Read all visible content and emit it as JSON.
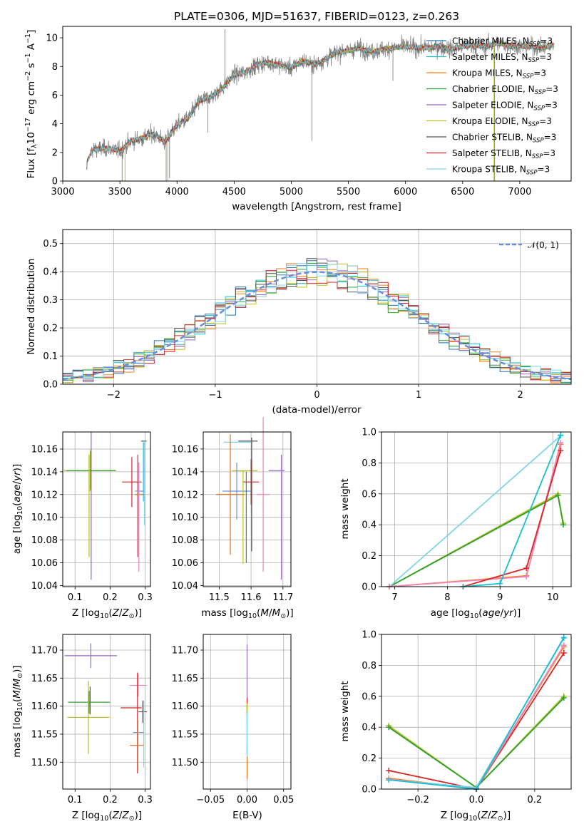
{
  "title": "PLATE=0306, MJD=51637, FIBERID=0123, z=0.263",
  "colors": {
    "Chabrier MILES": "#1f77b4",
    "Salpeter MILES": "#17becf",
    "Kroupa MILES": "#ff7f0e",
    "Chabrier ELODIE": "#2ca02c",
    "Salpeter ELODIE": "#9467bd",
    "Kroupa ELODIE": "#bcbd22",
    "Chabrier STELIB": "#555555",
    "Salpeter STELIB": "#d62728",
    "Kroupa STELIB": "#80d4e8",
    "data": "#808080",
    "normal": "#6b8fdf",
    "Chabrier MILES bar": "#6f8fdf",
    "Kroupa MILES bar": "#e07020",
    "Salpeter MILES bar": "#ee82c0"
  },
  "legend": [
    {
      "model": "Chabrier MILES",
      "pre": "Chabrier MILES, N",
      "sub": "SSP",
      "post": "=3"
    },
    {
      "model": "Salpeter MILES",
      "pre": "Salpeter MILES, N",
      "sub": "SSP",
      "post": "=3"
    },
    {
      "model": "Kroupa MILES",
      "pre": "Kroupa MILES, N",
      "sub": "SSP",
      "post": "=3"
    },
    {
      "model": "Chabrier ELODIE",
      "pre": "Chabrier ELODIE, N",
      "sub": "SSP",
      "post": "=3"
    },
    {
      "model": "Salpeter ELODIE",
      "pre": "Salpeter ELODIE, N",
      "sub": "SSP",
      "post": "=3"
    },
    {
      "model": "Kroupa ELODIE",
      "pre": "Kroupa ELODIE, N",
      "sub": "SSP",
      "post": "=3"
    },
    {
      "model": "Chabrier STELIB",
      "pre": "Chabrier STELIB, N",
      "sub": "SSP",
      "post": "=3"
    },
    {
      "model": "Salpeter STELIB",
      "pre": "Salpeter STELIB, N",
      "sub": "SSP",
      "post": "=3"
    },
    {
      "model": "Kroupa STELIB",
      "pre": "Kroupa STELIB, N",
      "sub": "SSP",
      "post": "=3"
    }
  ],
  "legend2": "𝒩(0, 1)",
  "chart_data": [
    {
      "id": "spectrum",
      "type": "line",
      "xlabel": "wavelength [Angstrom, rest frame]",
      "ylabel": "Flux [fλ10⁻¹⁷ erg cm⁻² s⁻¹ A⁻¹]",
      "xlim": [
        3000,
        7450
      ],
      "ylim": [
        0,
        10.8
      ],
      "xticks": [
        3000,
        3500,
        4000,
        4500,
        5000,
        5500,
        6000,
        6500,
        7000
      ],
      "yticks": [
        0,
        2,
        4,
        6,
        8,
        10
      ],
      "continuum": [
        [
          3200,
          0
        ],
        [
          3215,
          1.4
        ],
        [
          3260,
          2.2
        ],
        [
          3400,
          2.3
        ],
        [
          3500,
          2.1
        ],
        [
          3600,
          2.8
        ],
        [
          3700,
          3.0
        ],
        [
          3800,
          3.3
        ],
        [
          3900,
          2.7
        ],
        [
          3950,
          3.4
        ],
        [
          4000,
          3.9
        ],
        [
          4100,
          4.4
        ],
        [
          4200,
          5.6
        ],
        [
          4300,
          5.9
        ],
        [
          4400,
          6.5
        ],
        [
          4500,
          7.4
        ],
        [
          4600,
          7.6
        ],
        [
          4700,
          8.1
        ],
        [
          4800,
          8.3
        ],
        [
          4900,
          8.1
        ],
        [
          5000,
          7.9
        ],
        [
          5100,
          8.4
        ],
        [
          5200,
          8.1
        ],
        [
          5300,
          8.5
        ],
        [
          5400,
          9.0
        ],
        [
          5500,
          9.1
        ],
        [
          5600,
          9.3
        ],
        [
          5700,
          9.0
        ],
        [
          5800,
          9.2
        ],
        [
          5900,
          9.3
        ],
        [
          6000,
          9.4
        ],
        [
          6100,
          9.3
        ],
        [
          6200,
          9.3
        ],
        [
          6300,
          9.4
        ],
        [
          6400,
          9.2
        ],
        [
          6500,
          9.4
        ],
        [
          6600,
          9.5
        ],
        [
          6700,
          9.4
        ],
        [
          6800,
          9.6
        ],
        [
          6900,
          9.5
        ],
        [
          7000,
          9.4
        ],
        [
          7100,
          9.4
        ],
        [
          7200,
          9.3
        ],
        [
          7300,
          9.5
        ]
      ],
      "model_range": [
        3210,
        7300
      ],
      "data_range": [
        3240,
        7300
      ]
    },
    {
      "id": "residuals",
      "type": "step-histogram",
      "xlabel": "(data-model)/error",
      "ylabel": "Normed distribution",
      "xlim": [
        -2.5,
        2.5
      ],
      "ylim": [
        0,
        0.55
      ],
      "xticks": [
        -2,
        -1,
        0,
        1,
        2
      ],
      "yticks": [
        0.0,
        0.1,
        0.2,
        0.3,
        0.4,
        0.5
      ],
      "bin_width": 0.1,
      "normal": {
        "mu": 0,
        "sigma": 1
      }
    },
    {
      "id": "age-vs-Z",
      "type": "errorbar",
      "xlabel_pre": "Z [log",
      "xlabel_sub": "10",
      "xlabel_post": "(Z/Z",
      "xlabel_sun": "⊙",
      "xlabel_end": ")]",
      "ylabel": "age  [log10(age/yr)]",
      "xlim": [
        0.065,
        0.315
      ],
      "ylim": [
        10.039,
        10.175
      ],
      "xticks": [
        0.1,
        0.2,
        0.3
      ],
      "yticks": [
        10.04,
        10.06,
        10.08,
        10.1,
        10.12,
        10.14,
        10.16
      ],
      "points": [
        {
          "model": "Kroupa ELODIE",
          "x": 0.143,
          "xerr": 0.075,
          "y": 10.141,
          "yerr": 0.018
        },
        {
          "model": "Chabrier ELODIE",
          "x": 0.145,
          "xerr": 0.07,
          "y": 10.141,
          "yerr": 0.017
        },
        {
          "model": "Salpeter ELODIE",
          "x": 0.146,
          "xerr": 0.0,
          "y": 10.11,
          "yerr": 0.065
        },
        {
          "model": "Kroupa ELODIE",
          "x": 0.14,
          "xerr": 0.0,
          "y": 10.11,
          "yerr": 0.045
        },
        {
          "model": "Salpeter STELIB",
          "x": 0.262,
          "xerr": 0.028,
          "y": 10.131,
          "yerr": 0.022
        },
        {
          "model": "Salpeter STELIB",
          "x": 0.279,
          "xerr": 0.0,
          "y": 10.11,
          "yerr": 0.045
        },
        {
          "model": "Chabrier MILES bar",
          "x": 0.283,
          "xerr": 0.012,
          "y": 10.123,
          "yerr": 0.0
        },
        {
          "model": "Kroupa MILES bar",
          "x": 0.283,
          "xerr": 0.013,
          "y": 10.12,
          "yerr": 0.0
        },
        {
          "model": "Salpeter MILES bar",
          "x": 0.282,
          "xerr": 0.0,
          "y": 10.1,
          "yerr": 0.048
        },
        {
          "model": "Chabrier STELIB",
          "x": 0.296,
          "xerr": 0.008,
          "y": 10.167,
          "yerr": 0.0
        },
        {
          "model": "Kroupa STELIB",
          "x": 0.298,
          "xerr": 0.0,
          "y": 10.13,
          "yerr": 0.037
        },
        {
          "model": "Salpeter MILES",
          "x": 0.295,
          "xerr": 0.0,
          "y": 10.14,
          "yerr": 0.026
        }
      ]
    },
    {
      "id": "age-vs-mass",
      "type": "errorbar",
      "xlabel": "mass [log10(M/M⊙)]",
      "xlim": [
        11.45,
        11.725
      ],
      "ylim": [
        10.039,
        10.175
      ],
      "xticks": [
        11.5,
        11.6,
        11.7
      ],
      "yticks": [
        10.04,
        10.06,
        10.08,
        10.1,
        10.12,
        10.14,
        10.16
      ],
      "points": [
        {
          "model": "Kroupa STELIB",
          "x": 11.56,
          "xerr": 0.045,
          "y": 10.166,
          "yerr": 0.0
        },
        {
          "model": "Chabrier STELIB",
          "x": 11.59,
          "xerr": 0.03,
          "y": 10.167,
          "yerr": 0.0
        },
        {
          "model": "Salpeter ELODIE",
          "x": 11.68,
          "xerr": 0.025,
          "y": 10.141,
          "yerr": 0.0
        },
        {
          "model": "Kroupa ELODIE",
          "x": 11.58,
          "xerr": 0.04,
          "y": 10.141,
          "yerr": 0.0
        },
        {
          "model": "Salpeter STELIB",
          "x": 11.6,
          "xerr": 0.025,
          "y": 10.131,
          "yerr": 0.02
        },
        {
          "model": "Chabrier MILES bar",
          "x": 11.555,
          "xerr": 0.045,
          "y": 10.123,
          "yerr": 0.025
        },
        {
          "model": "Kroupa MILES bar",
          "x": 11.535,
          "xerr": 0.045,
          "y": 10.12,
          "yerr": 0.053
        },
        {
          "model": "Salpeter MILES bar",
          "x": 11.638,
          "xerr": 0.02,
          "y": 10.12,
          "yerr": 0.068
        },
        {
          "model": "Salpeter ELODIE",
          "x": 11.695,
          "xerr": 0.0,
          "y": 10.1,
          "yerr": 0.055
        },
        {
          "model": "Chabrier ELODIE",
          "x": 11.585,
          "xerr": 0.0,
          "y": 10.1,
          "yerr": 0.04
        },
        {
          "model": "Kroupa ELODIE",
          "x": 11.575,
          "xerr": 0.0,
          "y": 10.1,
          "yerr": 0.041
        },
        {
          "model": "Chabrier STELIB",
          "x": 11.602,
          "xerr": 0.0,
          "y": 10.12,
          "yerr": 0.05
        }
      ]
    },
    {
      "id": "weight-vs-age",
      "type": "line",
      "xlabel": "age  [log10(age/yr)]",
      "ylabel": "mass weight",
      "xlim": [
        6.75,
        10.35
      ],
      "ylim": [
        0,
        1.0
      ],
      "xticks": [
        7,
        8,
        9,
        10
      ],
      "yticks": [
        0.0,
        0.2,
        0.4,
        0.6,
        0.8,
        1.0
      ],
      "series": [
        {
          "model": "Kroupa ELODIE",
          "x": [
            6.9,
            10.1,
            10.2
          ],
          "y": [
            0.0,
            0.6,
            0.41
          ]
        },
        {
          "model": "Chabrier ELODIE",
          "x": [
            6.9,
            10.1,
            10.2
          ],
          "y": [
            0.0,
            0.59,
            0.4
          ]
        },
        {
          "model": "Kroupa STELIB",
          "x": [
            6.9,
            10.15
          ],
          "y": [
            0.0,
            0.975
          ]
        },
        {
          "model": "Kroupa MILES",
          "x": [
            6.9,
            9.5,
            10.15
          ],
          "y": [
            0.0,
            0.07,
            0.92
          ]
        },
        {
          "model": "Salpeter MILES bar",
          "x": [
            6.9,
            9.5,
            10.15
          ],
          "y": [
            0.0,
            0.065,
            0.93
          ]
        },
        {
          "model": "Salpeter STELIB",
          "x": [
            8.3,
            9.5,
            10.15
          ],
          "y": [
            0.0,
            0.12,
            0.88
          ]
        },
        {
          "model": "Salpeter MILES",
          "x": [
            8.3,
            9.0,
            10.15
          ],
          "y": [
            0.0,
            0.02,
            0.98
          ]
        }
      ]
    },
    {
      "id": "mass-vs-Z",
      "type": "errorbar",
      "ylabel": "mass [log10(M/M⊙)]",
      "xlim": [
        0.065,
        0.315
      ],
      "ylim": [
        11.452,
        11.728
      ],
      "xticks": [
        0.1,
        0.2,
        0.3
      ],
      "yticks": [
        11.5,
        11.55,
        11.6,
        11.65,
        11.7
      ],
      "points": [
        {
          "model": "Salpeter ELODIE",
          "x": 0.145,
          "xerr": 0.075,
          "y": 11.69,
          "yerr": 0.022
        },
        {
          "model": "Chabrier STELIB",
          "x": 0.143,
          "xerr": 0.0,
          "y": 11.61,
          "yerr": 0.025
        },
        {
          "model": "Chabrier ELODIE",
          "x": 0.14,
          "xerr": 0.06,
          "y": 11.607,
          "yerr": 0.02
        },
        {
          "model": "Kroupa ELODIE",
          "x": 0.138,
          "xerr": 0.06,
          "y": 11.58,
          "yerr": 0.065
        },
        {
          "model": "Salpeter MILES bar",
          "x": 0.28,
          "xerr": 0.025,
          "y": 11.637,
          "yerr": 0.02
        },
        {
          "model": "Salpeter STELIB",
          "x": 0.26,
          "xerr": 0.03,
          "y": 11.597,
          "yerr": 0.0
        },
        {
          "model": "Salpeter STELIB",
          "x": 0.278,
          "xerr": 0.0,
          "y": 11.57,
          "yerr": 0.09
        },
        {
          "model": "Chabrier STELIB",
          "x": 0.293,
          "xerr": 0.012,
          "y": 11.59,
          "yerr": 0.02
        },
        {
          "model": "Chabrier MILES bar",
          "x": 0.28,
          "xerr": 0.015,
          "y": 11.553,
          "yerr": 0.0
        },
        {
          "model": "Kroupa MILES bar",
          "x": 0.276,
          "xerr": 0.02,
          "y": 11.53,
          "yerr": 0.0
        },
        {
          "model": "Kroupa STELIB",
          "x": 0.296,
          "xerr": 0.0,
          "y": 11.55,
          "yerr": 0.06
        },
        {
          "model": "Kroupa MILES bar",
          "x": 0.279,
          "xerr": 0.0,
          "y": 11.53,
          "yerr": 0.045
        }
      ]
    },
    {
      "id": "mass-vs-EBV",
      "type": "errorbar",
      "xlabel": "E(B-V)",
      "xlim": [
        -0.06,
        0.06
      ],
      "ylim": [
        11.452,
        11.728
      ],
      "xticks": [
        -0.05,
        0.0,
        0.05
      ],
      "yticks": [
        11.5,
        11.55,
        11.6,
        11.65,
        11.7
      ],
      "points": [
        {
          "model": "Salpeter ELODIE",
          "x": 0.0,
          "xerr": 0.0,
          "y": 11.64,
          "yerr": 0.07
        },
        {
          "model": "Salpeter STELIB",
          "x": 0.0,
          "xerr": 0.0,
          "y": 11.6,
          "yerr": 0.015
        },
        {
          "model": "Kroupa ELODIE",
          "x": 0.0,
          "xerr": 0.0,
          "y": 11.56,
          "yerr": 0.045
        },
        {
          "model": "Kroupa MILES bar",
          "x": 0.0,
          "xerr": 0.0,
          "y": 11.5,
          "yerr": 0.03
        },
        {
          "model": "Kroupa STELIB",
          "x": 0.0,
          "xerr": 0.0,
          "y": 11.55,
          "yerr": 0.04
        }
      ]
    },
    {
      "id": "weight-vs-Z",
      "type": "line",
      "xlabel": "Z [log10(Z/Z⊙)]",
      "ylabel": "mass weight",
      "xlim": [
        -0.325,
        0.325
      ],
      "ylim": [
        0,
        1.0
      ],
      "xticks": [
        -0.2,
        0.0,
        0.2
      ],
      "yticks": [
        0.0,
        0.2,
        0.4,
        0.6,
        0.8,
        1.0
      ],
      "series": [
        {
          "model": "Kroupa ELODIE",
          "x": [
            -0.3,
            0.0,
            0.3
          ],
          "y": [
            0.41,
            0.01,
            0.6
          ]
        },
        {
          "model": "Chabrier ELODIE",
          "x": [
            -0.3,
            0.0,
            0.3
          ],
          "y": [
            0.4,
            0.01,
            0.59
          ]
        },
        {
          "model": "Salpeter STELIB",
          "x": [
            -0.3,
            0.0,
            0.3
          ],
          "y": [
            0.12,
            0.0,
            0.88
          ]
        },
        {
          "model": "Kroupa MILES",
          "x": [
            -0.3,
            0.0,
            0.3
          ],
          "y": [
            0.07,
            0.0,
            0.92
          ]
        },
        {
          "model": "Salpeter MILES bar",
          "x": [
            -0.3,
            0.0,
            0.3
          ],
          "y": [
            0.065,
            0.0,
            0.93
          ]
        },
        {
          "model": "Kroupa STELIB",
          "x": [
            -0.3,
            0.0,
            0.3
          ],
          "y": [
            0.06,
            0.01,
            0.975
          ]
        },
        {
          "model": "Salpeter MILES",
          "x": [
            -0.3,
            0.0,
            0.3
          ],
          "y": [
            0.06,
            0.0,
            0.98
          ]
        }
      ]
    }
  ]
}
